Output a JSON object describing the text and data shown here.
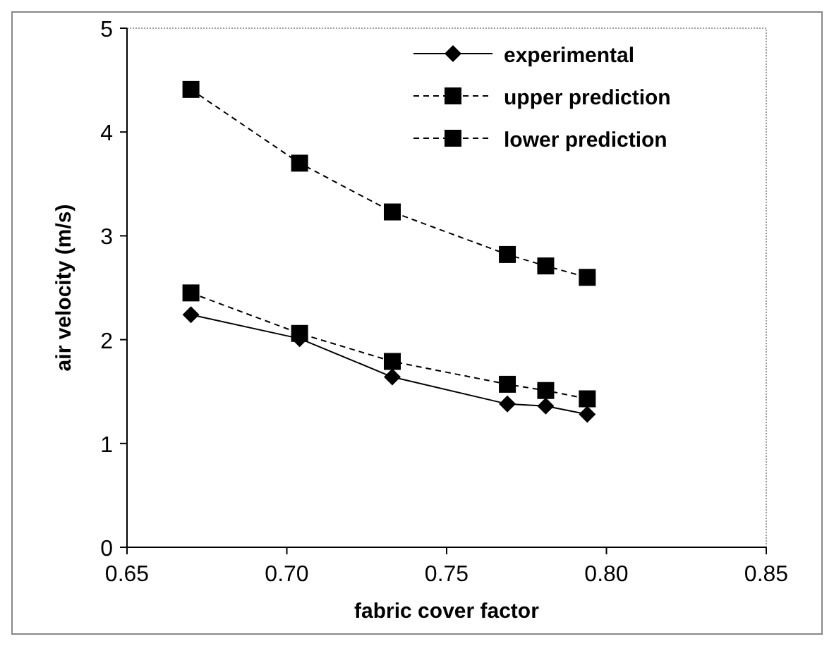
{
  "chart_data": {
    "type": "line",
    "xlabel": "fabric cover factor",
    "ylabel": "air velocity (m/s)",
    "x": [
      0.67,
      0.704,
      0.733,
      0.769,
      0.781,
      0.794
    ],
    "series": [
      {
        "name": "experimental",
        "color": "#000000",
        "marker": "diamond",
        "line_style": "solid",
        "values": [
          2.24,
          2.01,
          1.64,
          1.38,
          1.36,
          1.28
        ]
      },
      {
        "name": "upper prediction",
        "color": "#000000",
        "marker": "square",
        "line_style": "dashed",
        "values": [
          4.41,
          3.7,
          3.23,
          2.82,
          2.71,
          2.6
        ]
      },
      {
        "name": "lower prediction",
        "color": "#000000",
        "marker": "square",
        "line_style": "dashed",
        "values": [
          2.45,
          2.06,
          1.79,
          1.57,
          1.51,
          1.43
        ]
      }
    ],
    "xlim": [
      0.65,
      0.85
    ],
    "xticks": [
      {
        "value": 0.65,
        "label": "0.65"
      },
      {
        "value": 0.7,
        "label": "0.70"
      },
      {
        "value": 0.75,
        "label": "0.75"
      },
      {
        "value": 0.8,
        "label": "0.80"
      },
      {
        "value": 0.85,
        "label": "0.85"
      }
    ],
    "ylim": [
      0,
      5
    ],
    "yticks": [
      0,
      1,
      2,
      3,
      4,
      5
    ],
    "grid": false,
    "legend": "top right"
  }
}
